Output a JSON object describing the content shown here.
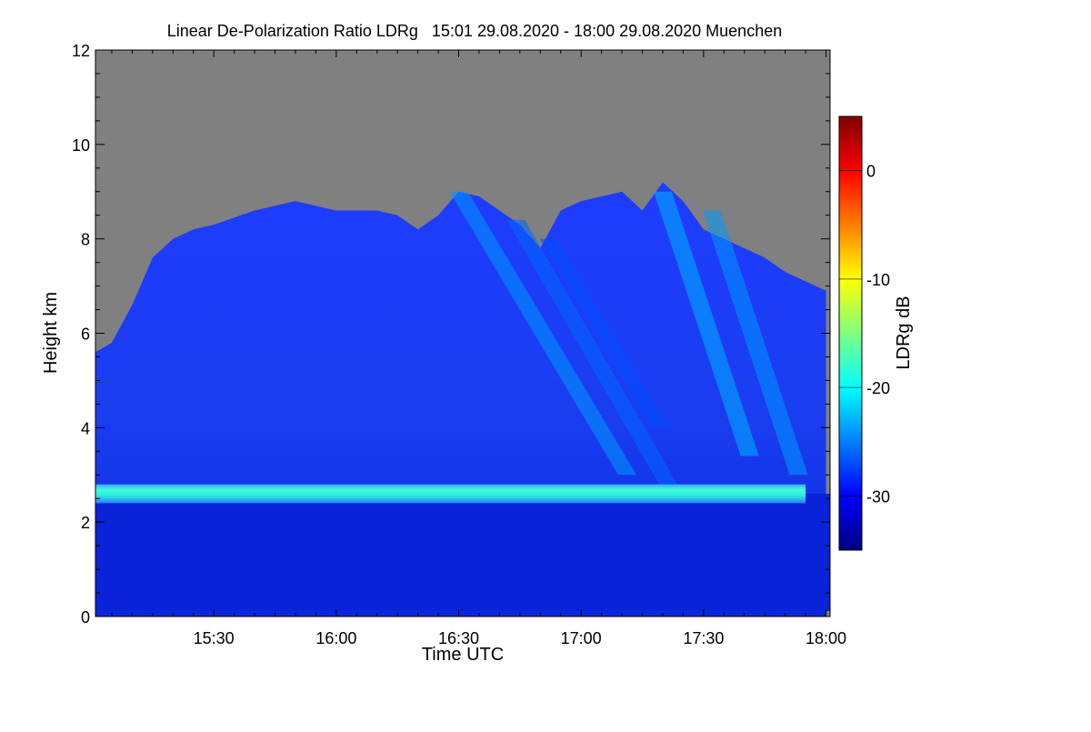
{
  "chart_data": {
    "type": "heatmap",
    "title": "Linear De-Polarization Ratio LDRg   15:01 29.08.2020 - 18:00 29.08.2020 Muenchen",
    "xlabel": "Time UTC",
    "ylabel": "Height km",
    "x_ticks": [
      "15:30",
      "16:00",
      "16:30",
      "17:00",
      "17:30",
      "18:00"
    ],
    "x_tick_minutes": [
      30,
      60,
      90,
      120,
      150,
      180
    ],
    "xlim_minutes": [
      1,
      181
    ],
    "ylim": [
      0,
      12
    ],
    "y_ticks": [
      0,
      2,
      4,
      6,
      8,
      10,
      12
    ],
    "colorbar": {
      "label": "LDRg dB",
      "range": [
        -35,
        5
      ],
      "ticks": [
        -30,
        -20,
        -10,
        0
      ],
      "colors": [
        "#00007f",
        "#0000ff",
        "#007fff",
        "#00ffff",
        "#7fff7f",
        "#ffff00",
        "#ff7f00",
        "#ff0000",
        "#7f0000"
      ]
    },
    "no_data_color": "#808080",
    "layer": {
      "height_km": 2.6,
      "ldr_db": -21,
      "start": "15:01",
      "end": "17:55"
    },
    "cloud_top_km": {
      "minutes": [
        1,
        5,
        10,
        15,
        20,
        25,
        30,
        40,
        50,
        55,
        60,
        70,
        75,
        80,
        85,
        90,
        95,
        100,
        105,
        110,
        115,
        120,
        125,
        130,
        135,
        140,
        145,
        150,
        155,
        160,
        165,
        170,
        175,
        180
      ],
      "values": [
        5.6,
        5.8,
        6.6,
        7.6,
        8.0,
        8.2,
        8.3,
        8.6,
        8.8,
        8.7,
        8.6,
        8.6,
        8.5,
        8.2,
        8.5,
        9.0,
        8.9,
        8.6,
        8.3,
        7.8,
        8.6,
        8.8,
        8.9,
        9.0,
        8.6,
        9.2,
        8.8,
        8.2,
        8.0,
        7.8,
        7.6,
        7.3,
        7.1,
        6.9
      ]
    },
    "fall_streaks": [
      {
        "start_min": 90,
        "top_km": 9.0,
        "end_min": 130,
        "bottom_km": 3.0,
        "ldr_db": -24
      },
      {
        "start_min": 104,
        "top_km": 8.4,
        "end_min": 140,
        "bottom_km": 2.8,
        "ldr_db": -26
      },
      {
        "start_min": 112,
        "top_km": 8.0,
        "end_min": 138,
        "bottom_km": 4.0,
        "ldr_db": -27
      },
      {
        "start_min": 140,
        "top_km": 9.0,
        "end_min": 160,
        "bottom_km": 3.4,
        "ldr_db": -23
      },
      {
        "start_min": 152,
        "top_km": 8.6,
        "end_min": 172,
        "bottom_km": 3.0,
        "ldr_db": -24
      }
    ]
  }
}
